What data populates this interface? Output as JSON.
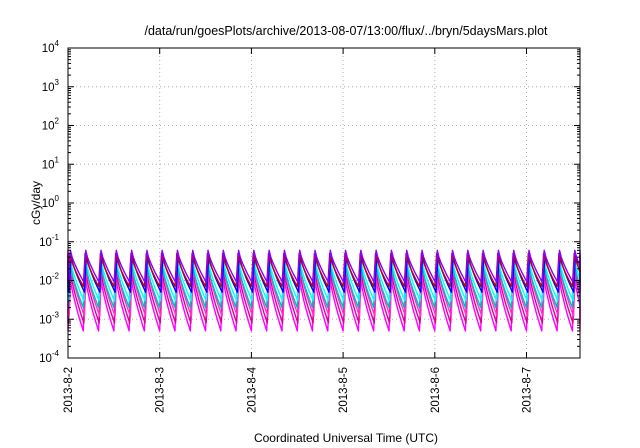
{
  "chart_data": {
    "type": "line",
    "title": "/data/run/goesPlots/archive/2013-08-07/13:00/flux/../bryn/5daysMars.plot",
    "xlabel": "Coordinated Universal Time (UTC)",
    "ylabel": "cGy/day",
    "yscale": "log",
    "ylim": [
      0.0001,
      10000
    ],
    "y_ticks": [
      {
        "base": "10",
        "exp": "-4"
      },
      {
        "base": "10",
        "exp": "-3"
      },
      {
        "base": "10",
        "exp": "-2"
      },
      {
        "base": "10",
        "exp": "-1"
      },
      {
        "base": "10",
        "exp": "0"
      },
      {
        "base": "10",
        "exp": "1"
      },
      {
        "base": "10",
        "exp": "2"
      },
      {
        "base": "10",
        "exp": "3"
      },
      {
        "base": "10",
        "exp": "4"
      }
    ],
    "x_ticks": [
      "2013-8-2",
      "2013-8-3",
      "2013-8-4",
      "2013-8-5",
      "2013-8-6",
      "2013-8-7"
    ],
    "xlim": [
      "2013-08-02 00:00",
      "2013-08-07 14:00"
    ],
    "grid": true,
    "legend": "none",
    "pattern": {
      "description": "sawtooth oscillation with about 6 cycles per day; each cycle jumps up then decays",
      "cycles_per_day": 6
    },
    "series": [
      {
        "color": "#ff00ff",
        "peak": 0.014,
        "trough": 0.0005
      },
      {
        "color": "#dd0099",
        "peak": 0.018,
        "trough": 0.0008
      },
      {
        "color": "#ff33cc",
        "peak": 0.022,
        "trough": 0.0012
      },
      {
        "color": "#00bbbb",
        "peak": 0.03,
        "trough": 0.002
      },
      {
        "color": "#00ffff",
        "peak": 0.035,
        "trough": 0.003
      },
      {
        "color": "#0000ff",
        "peak": 0.045,
        "trough": 0.005
      },
      {
        "color": "#cc0000",
        "peak": 0.05,
        "trough": 0.007
      },
      {
        "color": "#8800ff",
        "peak": 0.06,
        "trough": 0.009
      }
    ]
  }
}
